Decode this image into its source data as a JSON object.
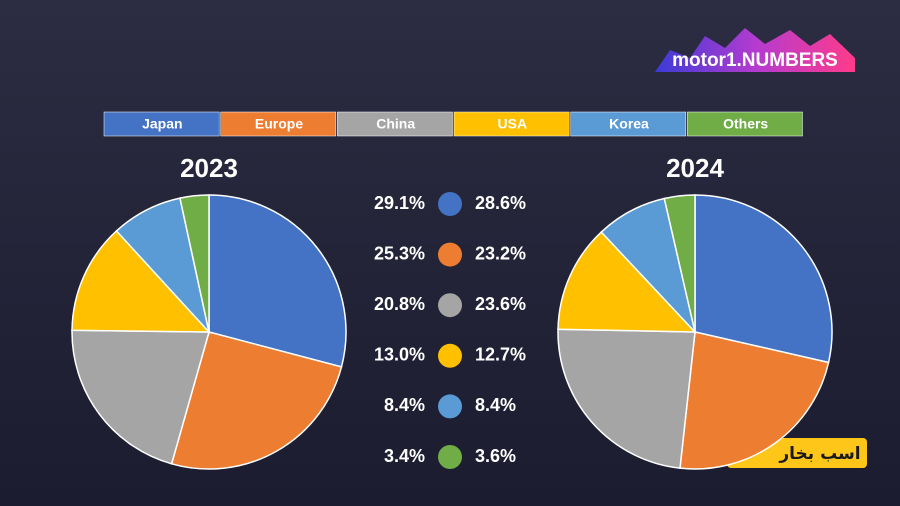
{
  "logo": "motor1.NUMBERS",
  "watermark": "اسب بخار",
  "chart_data": [
    {
      "type": "pie",
      "title": "2023",
      "categories": [
        "Japan",
        "Europe",
        "China",
        "USA",
        "Korea",
        "Others"
      ],
      "values": [
        29.1,
        25.3,
        20.8,
        13.0,
        8.4,
        3.4
      ],
      "value_labels": [
        "29.1%",
        "25.3%",
        "20.8%",
        "13.0%",
        "8.4%",
        "3.4%"
      ],
      "colors": [
        "#4472c4",
        "#ed7d31",
        "#a5a5a5",
        "#ffc000",
        "#5b9bd5",
        "#70ad47"
      ]
    },
    {
      "type": "pie",
      "title": "2024",
      "categories": [
        "Japan",
        "Europe",
        "China",
        "USA",
        "Korea",
        "Others"
      ],
      "values": [
        28.6,
        23.2,
        23.6,
        12.7,
        8.4,
        3.6
      ],
      "value_labels": [
        "28.6%",
        "23.2%",
        "23.6%",
        "12.7%",
        "8.4%",
        "3.6%"
      ],
      "colors": [
        "#4472c4",
        "#ed7d31",
        "#a5a5a5",
        "#ffc000",
        "#5b9bd5",
        "#70ad47"
      ]
    }
  ]
}
